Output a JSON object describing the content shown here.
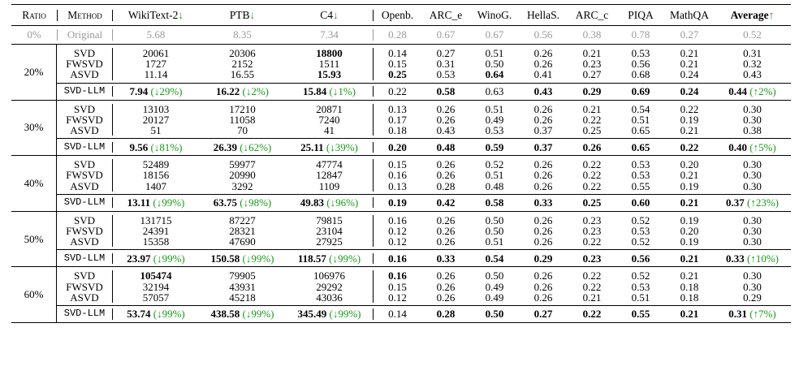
{
  "headers": {
    "ratio": "Ratio",
    "method": "Method",
    "wikitext": "WikiText-2",
    "ptb": "PTB",
    "c4": "C4",
    "openb": "Openb.",
    "arc_e": "ARC_e",
    "winog": "WinoG.",
    "hellas": "HellaS.",
    "arc_c": "ARC_c",
    "piqa": "PIQA",
    "mathqa": "MathQA",
    "average": "Average",
    "down_arrow": "↓",
    "up_arrow": "↑"
  },
  "original": {
    "ratio": "0%",
    "method": "Original",
    "values": [
      "5.68",
      "8.35",
      "7.34",
      "0.28",
      "0.67",
      "0.67",
      "0.56",
      "0.38",
      "0.78",
      "0.27",
      "0.52"
    ]
  },
  "groups": [
    {
      "ratio": "20%",
      "rows": [
        {
          "method": "SVD",
          "values": [
            "20061",
            "20306",
            "18800",
            "0.14",
            "0.27",
            "0.51",
            "0.26",
            "0.21",
            "0.53",
            "0.21",
            "0.31"
          ]
        },
        {
          "method": "FWSVD",
          "values": [
            "1727",
            "2152",
            "1511",
            "0.15",
            "0.31",
            "0.50",
            "0.26",
            "0.23",
            "0.56",
            "0.21",
            "0.32"
          ]
        },
        {
          "method": "ASVD",
          "values": [
            "11.14",
            "16.55",
            "15.93",
            "0.25",
            "0.53",
            "0.64",
            "0.41",
            "0.27",
            "0.68",
            "0.24",
            "0.43"
          ]
        }
      ],
      "llm": {
        "method": "SVD-LLM",
        "values": [
          "7.94",
          "16.22",
          "15.84",
          "0.22",
          "0.58",
          "0.63",
          "0.43",
          "0.29",
          "0.69",
          "0.24",
          "0.44"
        ],
        "deltas": [
          "(↓29%)",
          "(↓2%)",
          "(↓1%)",
          "(↑2%)"
        ]
      }
    },
    {
      "ratio": "30%",
      "rows": [
        {
          "method": "SVD",
          "values": [
            "13103",
            "17210",
            "20871",
            "0.13",
            "0.26",
            "0.51",
            "0.26",
            "0.21",
            "0.54",
            "0.22",
            "0.30"
          ]
        },
        {
          "method": "FWSVD",
          "values": [
            "20127",
            "11058",
            "7240",
            "0.17",
            "0.26",
            "0.49",
            "0.26",
            "0.22",
            "0.51",
            "0.19",
            "0.30"
          ]
        },
        {
          "method": "ASVD",
          "values": [
            "51",
            "70",
            "41",
            "0.18",
            "0.43",
            "0.53",
            "0.37",
            "0.25",
            "0.65",
            "0.21",
            "0.38"
          ]
        }
      ],
      "llm": {
        "method": "SVD-LLM",
        "values": [
          "9.56",
          "26.39",
          "25.11",
          "0.20",
          "0.48",
          "0.59",
          "0.37",
          "0.26",
          "0.65",
          "0.22",
          "0.40"
        ],
        "deltas": [
          "(↓81%)",
          "(↓62%)",
          "(↓39%)",
          "(↑5%)"
        ]
      }
    },
    {
      "ratio": "40%",
      "rows": [
        {
          "method": "SVD",
          "values": [
            "52489",
            "59977",
            "47774",
            "0.15",
            "0.26",
            "0.52",
            "0.26",
            "0.22",
            "0.53",
            "0.20",
            "0.30"
          ]
        },
        {
          "method": "FWSVD",
          "values": [
            "18156",
            "20990",
            "12847",
            "0.16",
            "0.26",
            "0.51",
            "0.26",
            "0.22",
            "0.53",
            "0.21",
            "0.30"
          ]
        },
        {
          "method": "ASVD",
          "values": [
            "1407",
            "3292",
            "1109",
            "0.13",
            "0.28",
            "0.48",
            "0.26",
            "0.22",
            "0.55",
            "0.19",
            "0.30"
          ]
        }
      ],
      "llm": {
        "method": "SVD-LLM",
        "values": [
          "13.11",
          "63.75",
          "49.83",
          "0.19",
          "0.42",
          "0.58",
          "0.33",
          "0.25",
          "0.60",
          "0.21",
          "0.37"
        ],
        "deltas": [
          "(↓99%)",
          "(↓98%)",
          "(↓96%)",
          "(↑23%)"
        ]
      }
    },
    {
      "ratio": "50%",
      "rows": [
        {
          "method": "SVD",
          "values": [
            "131715",
            "87227",
            "79815",
            "0.16",
            "0.26",
            "0.50",
            "0.26",
            "0.23",
            "0.52",
            "0.19",
            "0.30"
          ]
        },
        {
          "method": "FWSVD",
          "values": [
            "24391",
            "28321",
            "23104",
            "0.12",
            "0.26",
            "0.50",
            "0.26",
            "0.23",
            "0.53",
            "0.20",
            "0.30"
          ]
        },
        {
          "method": "ASVD",
          "values": [
            "15358",
            "47690",
            "27925",
            "0.12",
            "0.26",
            "0.51",
            "0.26",
            "0.22",
            "0.52",
            "0.19",
            "0.30"
          ]
        }
      ],
      "llm": {
        "method": "SVD-LLM",
        "values": [
          "23.97",
          "150.58",
          "118.57",
          "0.16",
          "0.33",
          "0.54",
          "0.29",
          "0.23",
          "0.56",
          "0.21",
          "0.33"
        ],
        "deltas": [
          "(↓99%)",
          "(↓99%)",
          "(↓99%)",
          "(↑10%)"
        ]
      }
    },
    {
      "ratio": "60%",
      "rows": [
        {
          "method": "SVD",
          "values": [
            "105474",
            "79905",
            "106976",
            "0.16",
            "0.26",
            "0.50",
            "0.26",
            "0.22",
            "0.52",
            "0.21",
            "0.30"
          ]
        },
        {
          "method": "FWSVD",
          "values": [
            "32194",
            "43931",
            "29292",
            "0.15",
            "0.26",
            "0.49",
            "0.26",
            "0.22",
            "0.53",
            "0.18",
            "0.30"
          ]
        },
        {
          "method": "ASVD",
          "values": [
            "57057",
            "45218",
            "43036",
            "0.12",
            "0.26",
            "0.49",
            "0.26",
            "0.21",
            "0.51",
            "0.18",
            "0.29"
          ]
        }
      ],
      "llm": {
        "method": "SVD-LLM",
        "values": [
          "53.74",
          "438.58",
          "345.49",
          "0.14",
          "0.28",
          "0.50",
          "0.27",
          "0.22",
          "0.55",
          "0.21",
          "0.31"
        ],
        "deltas": [
          "(↓99%)",
          "(↓99%)",
          "(↓99%)",
          "(↑7%)"
        ]
      }
    }
  ],
  "bold_map": [
    {
      "other_bold": [
        [
          2,
          3
        ],
        [
          2,
          5
        ]
      ],
      "llm_bold": [
        0,
        1,
        2,
        4,
        6,
        7,
        8,
        9,
        10
      ]
    },
    {
      "other_bold": [],
      "llm_bold": [
        0,
        1,
        2,
        3,
        4,
        5,
        6,
        7,
        8,
        9,
        10
      ]
    },
    {
      "other_bold": [],
      "llm_bold": [
        0,
        1,
        2,
        3,
        4,
        5,
        6,
        7,
        8,
        9,
        10
      ]
    },
    {
      "other_bold": [],
      "llm_bold": [
        0,
        1,
        2,
        3,
        4,
        5,
        6,
        7,
        8,
        9,
        10
      ]
    },
    {
      "other_bold": [
        [
          0,
          3
        ]
      ],
      "llm_bold": [
        0,
        1,
        2,
        4,
        5,
        6,
        7,
        8,
        9,
        10
      ]
    }
  ]
}
